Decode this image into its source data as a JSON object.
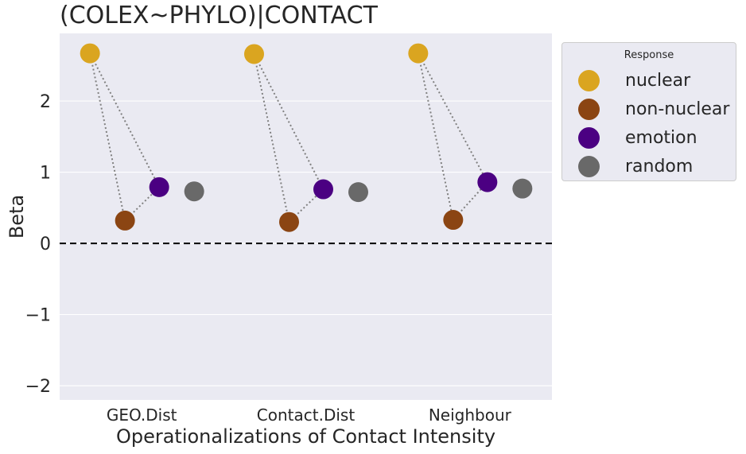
{
  "chart_data": {
    "type": "scatter",
    "title": "(COLEX~PHYLO)|CONTACT",
    "xlabel": "Operationalizations of Contact Intensity",
    "ylabel": "Beta",
    "categories": [
      "GEO.Dist",
      "Contact.Dist",
      "Neighbour"
    ],
    "ylim": [
      -2.2,
      2.95
    ],
    "yticks": [
      2,
      1,
      0,
      -1,
      -2
    ],
    "ytick_labels": [
      "2",
      "1",
      "0",
      "−1",
      "−2"
    ],
    "grid": true,
    "legend_title": "Response",
    "legend_position": "outside-top-right",
    "reference_line": {
      "y": 0,
      "style": "dashed"
    },
    "series": [
      {
        "name": "nuclear",
        "color": "#DAA520",
        "values": [
          2.67,
          2.66,
          2.67
        ]
      },
      {
        "name": "non-nuclear",
        "color": "#8B4513",
        "values": [
          0.32,
          0.3,
          0.33
        ]
      },
      {
        "name": "emotion",
        "color": "#4B0082",
        "values": [
          0.79,
          0.76,
          0.86
        ]
      },
      {
        "name": "random",
        "color": "#696969",
        "values": [
          0.73,
          0.72,
          0.77
        ]
      }
    ]
  }
}
